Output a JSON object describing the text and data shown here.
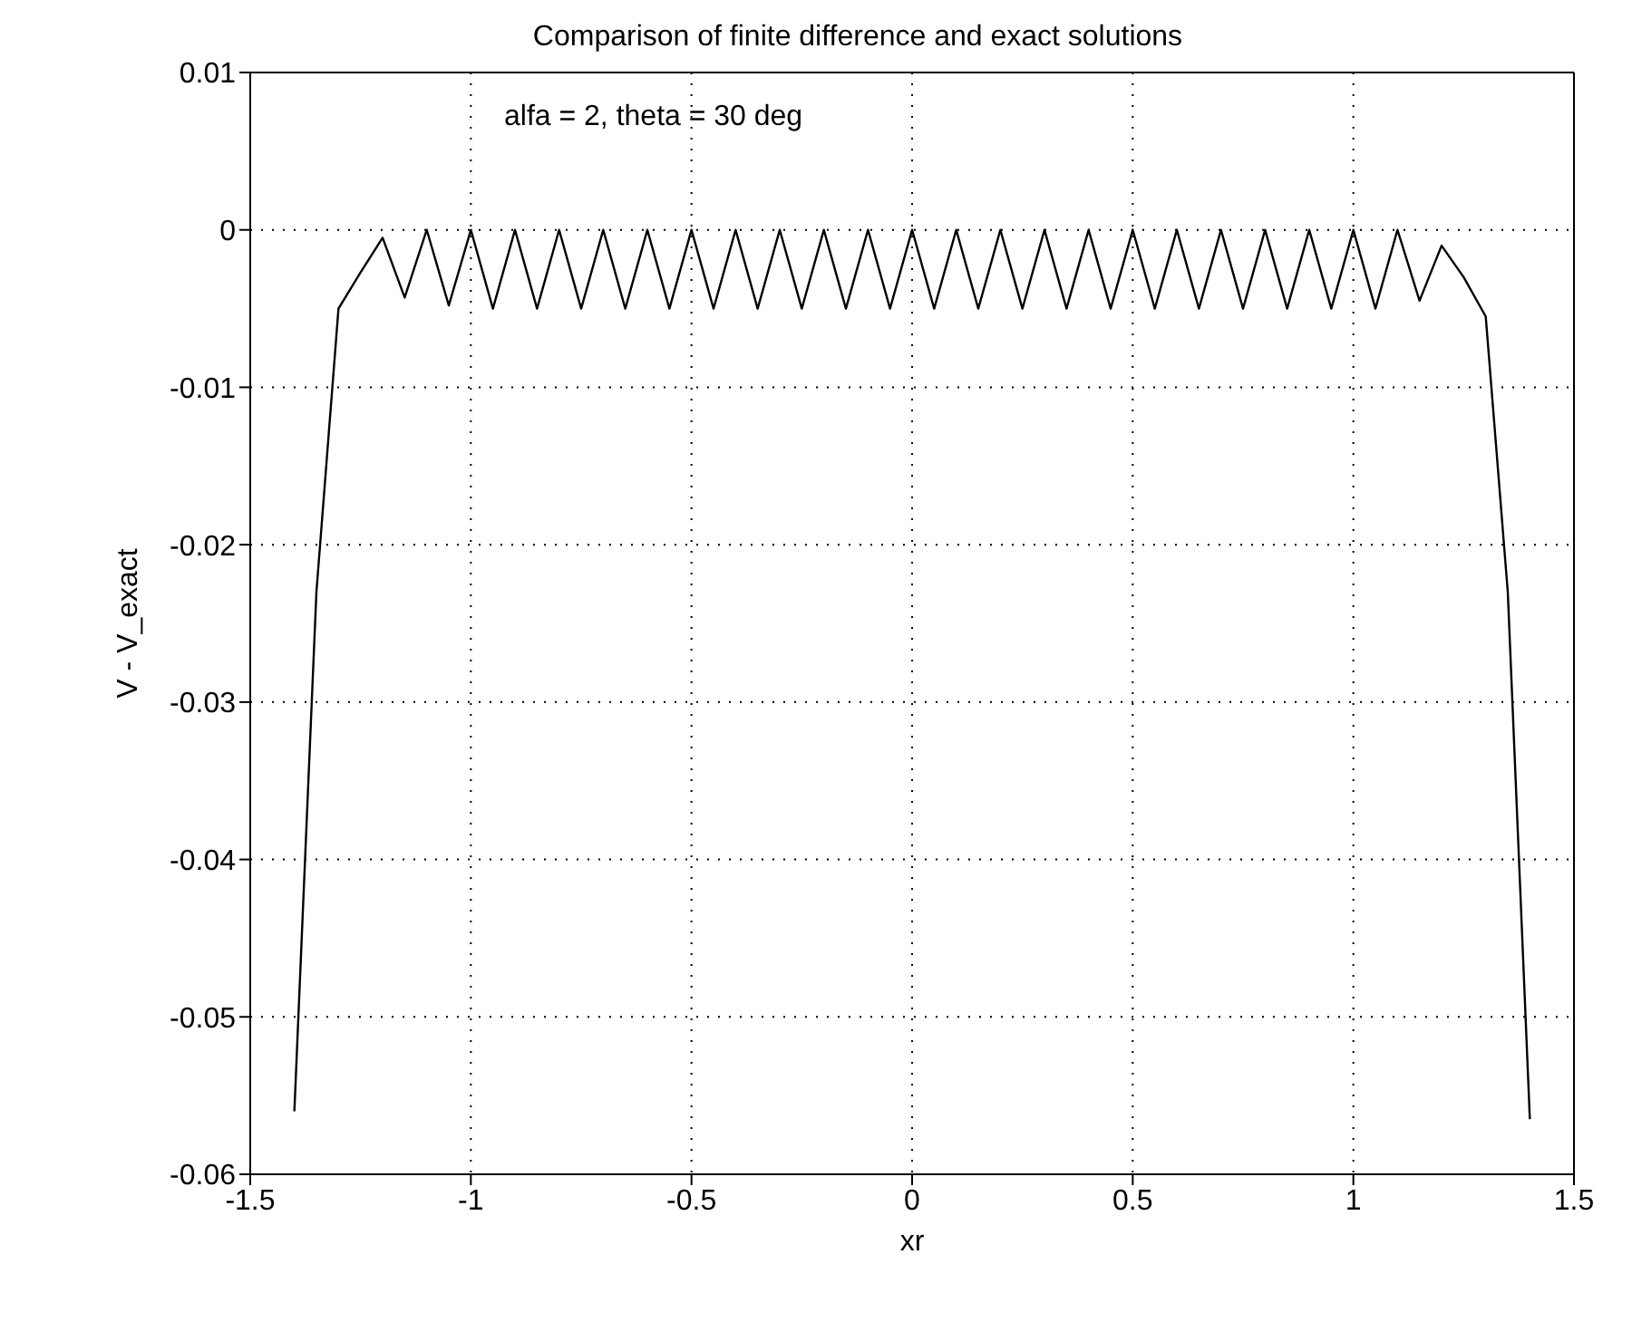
{
  "chart_data": {
    "type": "line",
    "title": "Comparison of finite difference and exact solutions",
    "xlabel": "xr",
    "ylabel": "V - V_exact",
    "annotations": [
      "alfa = 2, theta = 30 deg"
    ],
    "x": [
      -1.4,
      -1.35,
      -1.3,
      -1.25,
      -1.2,
      -1.15,
      -1.1,
      -1.05,
      -1.0,
      -0.95,
      -0.9,
      -0.85,
      -0.8,
      -0.75,
      -0.7,
      -0.65,
      -0.6,
      -0.55,
      -0.5,
      -0.45,
      -0.4,
      -0.35,
      -0.3,
      -0.25,
      -0.2,
      -0.15,
      -0.1,
      -0.05,
      0,
      0.05,
      0.1,
      0.15,
      0.2,
      0.25,
      0.3,
      0.35,
      0.4,
      0.45,
      0.5,
      0.55,
      0.6,
      0.65,
      0.7,
      0.75,
      0.8,
      0.85,
      0.9,
      0.95,
      1.0,
      1.05,
      1.1,
      1.15,
      1.2,
      1.25,
      1.3,
      1.35,
      1.4
    ],
    "series": [
      {
        "color": "#000000",
        "values": [
          -0.056,
          -0.023,
          -0.005,
          -0.0027,
          -0.0005,
          -0.0043,
          0,
          -0.0048,
          0,
          -0.005,
          0,
          -0.005,
          0,
          -0.005,
          0,
          -0.005,
          0,
          -0.005,
          0,
          -0.005,
          0,
          -0.005,
          0,
          -0.005,
          0,
          -0.005,
          0,
          -0.005,
          0,
          -0.005,
          0,
          -0.005,
          0,
          -0.005,
          0,
          -0.005,
          0,
          -0.005,
          0,
          -0.005,
          0,
          -0.005,
          0,
          -0.005,
          0,
          -0.005,
          0,
          -0.005,
          0,
          -0.005,
          0,
          -0.0045,
          -0.001,
          -0.003,
          -0.0055,
          -0.023,
          -0.0565
        ]
      }
    ],
    "xlim": [
      -1.5,
      1.5
    ],
    "xticks": [
      -1.5,
      -1,
      -0.5,
      0,
      0.5,
      1,
      1.5
    ],
    "ylim": [
      -0.06,
      0.01
    ],
    "yticks": [
      -0.06,
      -0.05,
      -0.04,
      -0.03,
      -0.02,
      -0.01,
      0,
      0.01
    ],
    "grid": true,
    "marker": "none",
    "line_style": "solid"
  }
}
